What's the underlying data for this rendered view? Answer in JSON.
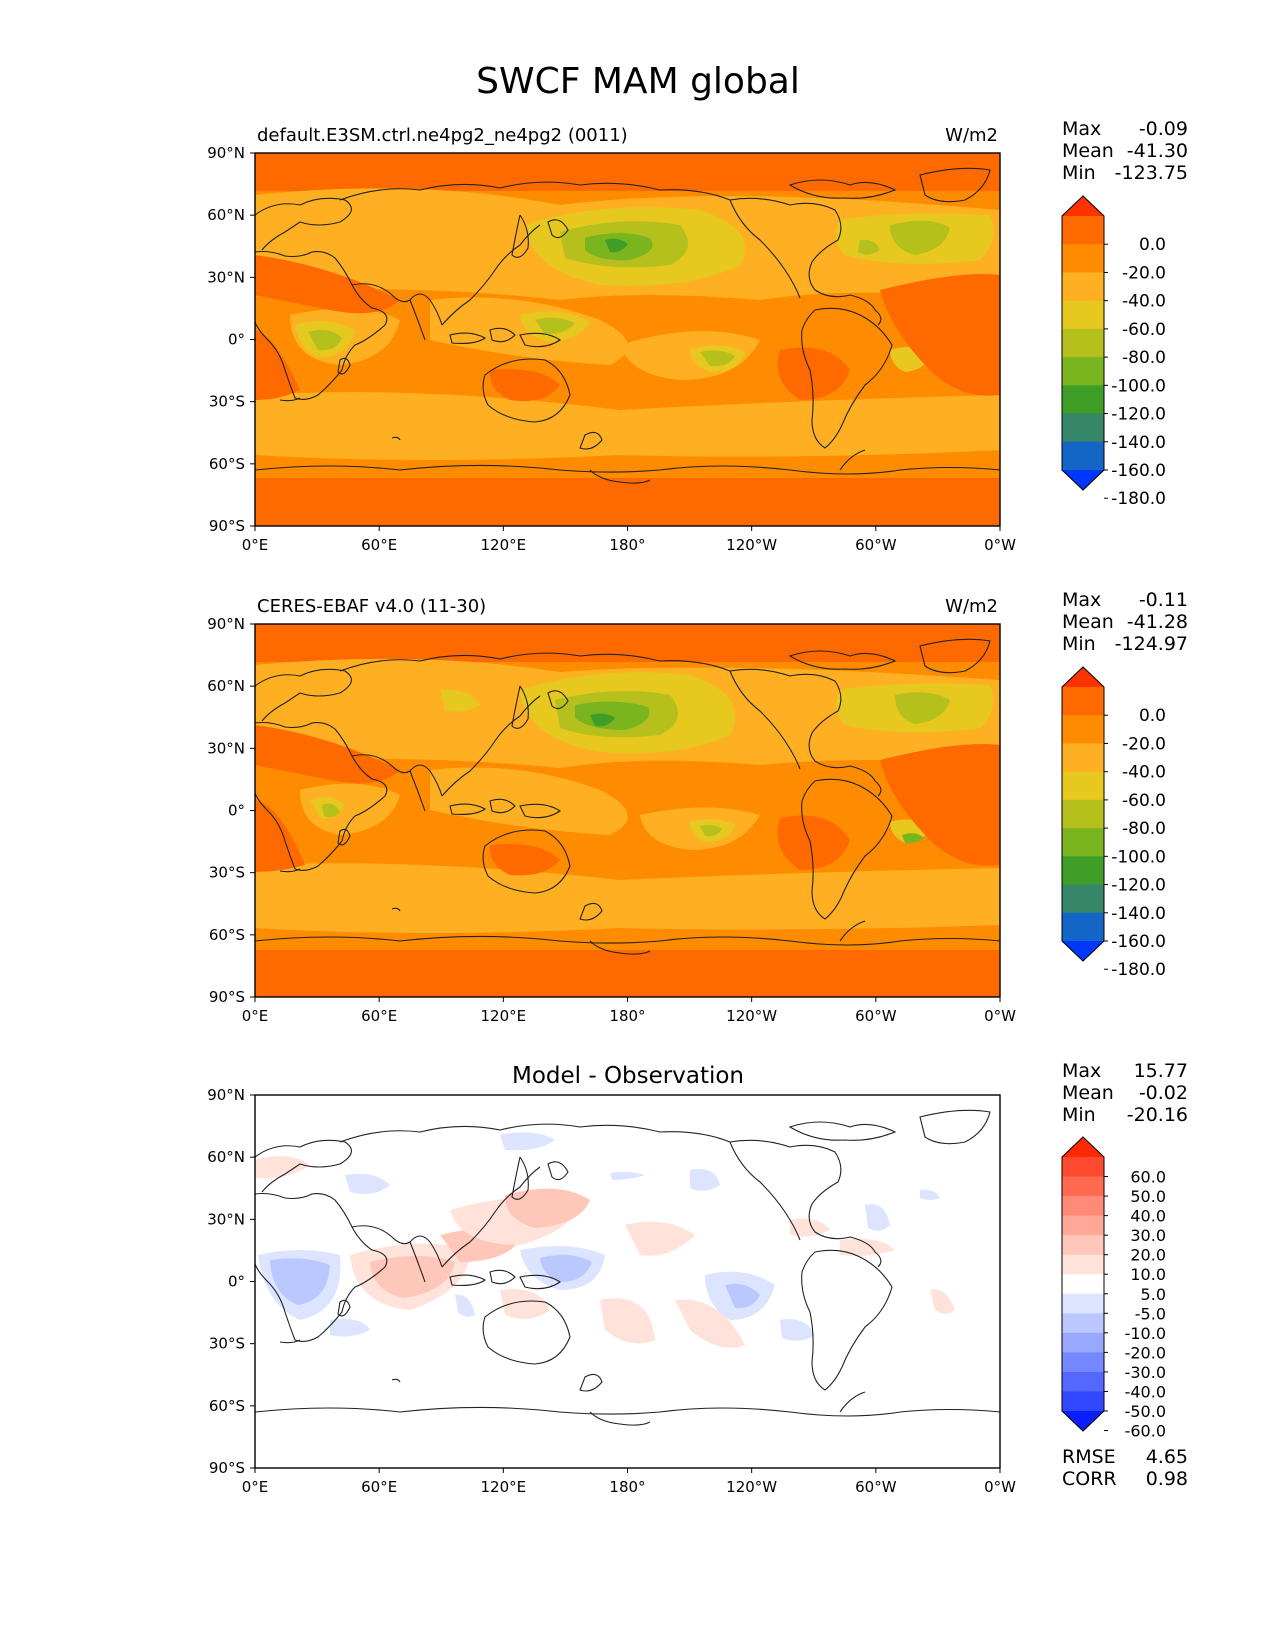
{
  "figure": {
    "title": "SWCF MAM global"
  },
  "axes": {
    "x_ticks": [
      "0°E",
      "60°E",
      "120°E",
      "180°",
      "120°W",
      "60°W",
      "0°W"
    ],
    "y_ticks": [
      "90°N",
      "60°N",
      "30°N",
      "0°",
      "30°S",
      "60°S",
      "90°S"
    ]
  },
  "stats_labels": {
    "max": "Max",
    "mean": "Mean",
    "min": "Min",
    "rmse": "RMSE",
    "corr": "CORR"
  },
  "panels": [
    {
      "title_left": "default.E3SM.ctrl.ne4pg2_ne4pg2 (0011)",
      "title_center": "",
      "units": "W/m2",
      "stats": {
        "max": "-0.09",
        "mean": "-41.30",
        "min": "-123.75"
      }
    },
    {
      "title_left": "CERES-EBAF v4.0 (11-30)",
      "title_center": "",
      "units": "W/m2",
      "stats": {
        "max": "-0.11",
        "mean": "-41.28",
        "min": "-124.97"
      }
    },
    {
      "title_left": "",
      "title_center": "Model - Observation",
      "units": "",
      "stats": {
        "max": "15.77",
        "mean": "-0.02",
        "min": "-20.16"
      },
      "rmse": "4.65",
      "corr": "0.98"
    }
  ],
  "colorbars": {
    "field": {
      "labels": [
        "0.0",
        "-20.0",
        "-40.0",
        "-60.0",
        "-80.0",
        "-100.0",
        "-120.0",
        "-140.0",
        "-160.0",
        "-180.0"
      ],
      "colors": [
        "#ff3300",
        "#ff6a00",
        "#ff8c00",
        "#ffb022",
        "#e6c81e",
        "#b5c01c",
        "#7ab520",
        "#3f9e28",
        "#36866a",
        "#1466c6",
        "#0037ff"
      ]
    },
    "diff": {
      "labels": [
        "60.0",
        "50.0",
        "40.0",
        "30.0",
        "20.0",
        "10.0",
        "5.0",
        "-5.0",
        "-10.0",
        "-20.0",
        "-30.0",
        "-40.0",
        "-50.0",
        "-60.0"
      ],
      "colors": [
        "#ff2a00",
        "#ff4a30",
        "#ff6a50",
        "#ff8a78",
        "#ffa898",
        "#ffc6ba",
        "#ffe2da",
        "#ffffff",
        "#dde4ff",
        "#bac8ff",
        "#98a8ff",
        "#7688ff",
        "#5468ff",
        "#3248ff",
        "#0a1eff"
      ]
    }
  }
}
